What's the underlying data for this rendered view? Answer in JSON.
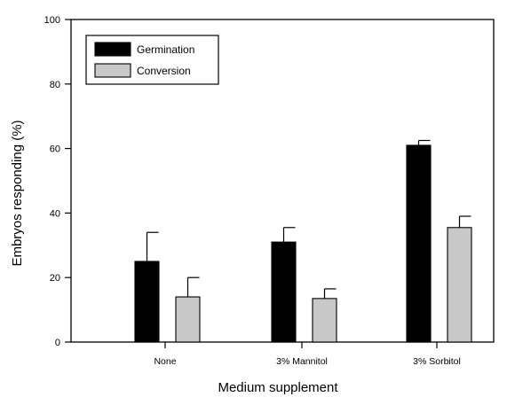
{
  "chart_data": {
    "type": "bar",
    "title": "",
    "xlabel": "Medium supplement",
    "ylabel": "Embryos responding (%)",
    "categories": [
      "None",
      "3% Mannitol",
      "3% Sorbitol"
    ],
    "ylim": [
      0,
      100
    ],
    "yticks": [
      "0",
      "20",
      "40",
      "60",
      "80",
      "100"
    ],
    "grid": false,
    "legend_position": "top-left",
    "series": [
      {
        "name": "Germination",
        "color": "#000000",
        "values": [
          25,
          31,
          61
        ],
        "errors": [
          9,
          4.5,
          1.5
        ]
      },
      {
        "name": "Conversion",
        "color": "#c8c8c8",
        "values": [
          14,
          13.5,
          35.5
        ],
        "errors": [
          6,
          3,
          3.5
        ]
      }
    ]
  }
}
